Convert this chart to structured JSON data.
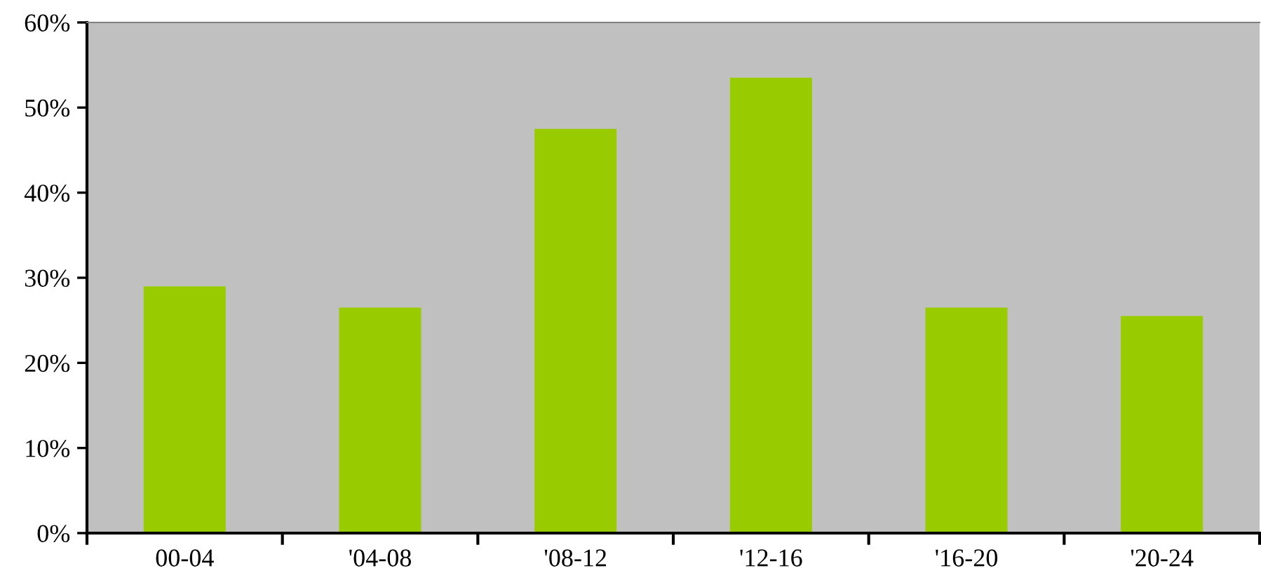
{
  "chart_data": {
    "type": "bar",
    "categories": [
      "00-04",
      "'04-08",
      "'08-12",
      "'12-16",
      "'16-20",
      "'20-24"
    ],
    "values": [
      29.0,
      26.5,
      47.5,
      53.5,
      26.5,
      25.5
    ],
    "color": "#99cc00",
    "ylim": [
      0,
      60
    ],
    "yticks": [
      {
        "value": 0,
        "label": "0%"
      },
      {
        "value": 10,
        "label": "10%"
      },
      {
        "value": 20,
        "label": "20%"
      },
      {
        "value": 30,
        "label": "30%"
      },
      {
        "value": 40,
        "label": "40%"
      },
      {
        "value": 50,
        "label": "50%"
      },
      {
        "value": 60,
        "label": "60%"
      }
    ],
    "grid": false,
    "legend": false
  }
}
